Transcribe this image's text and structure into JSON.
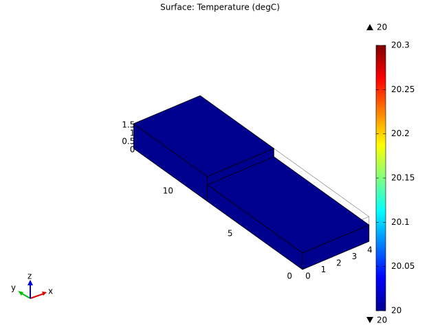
{
  "chart_data": {
    "type": "surface3d",
    "title": "Surface: Temperature (degC)",
    "xticks": [
      0,
      1,
      2,
      3,
      4
    ],
    "yticks": [
      0,
      5,
      10
    ],
    "zticks": [
      0,
      0.5,
      1,
      1.5
    ],
    "triad_labels": [
      "x",
      "y",
      "z"
    ],
    "colorbar": {
      "colormap": "jet",
      "lim": [
        20,
        20.3
      ],
      "ticks": [
        20,
        20.05,
        20.1,
        20.15,
        20.2,
        20.25,
        20.3
      ],
      "max": 20,
      "min": 20
    },
    "color": "#00008f"
  }
}
